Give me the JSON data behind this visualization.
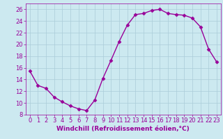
{
  "x": [
    0,
    1,
    2,
    3,
    4,
    5,
    6,
    7,
    8,
    9,
    10,
    11,
    12,
    13,
    14,
    15,
    16,
    17,
    18,
    19,
    20,
    21,
    22,
    23
  ],
  "y": [
    15.5,
    13.0,
    12.5,
    11.0,
    10.2,
    9.5,
    9.0,
    8.7,
    10.5,
    14.2,
    17.3,
    20.5,
    23.3,
    25.1,
    25.3,
    25.8,
    26.0,
    25.3,
    25.1,
    25.0,
    24.5,
    23.0,
    19.2,
    17.0
  ],
  "line_color": "#990099",
  "marker": "D",
  "marker_size": 2.5,
  "linewidth": 1.0,
  "bg_color": "#cce9f0",
  "grid_color": "#aaccd8",
  "xlabel": "Windchill (Refroidissement éolien,°C)",
  "xlabel_color": "#990099",
  "xlabel_fontsize": 6.5,
  "tick_color": "#990099",
  "tick_fontsize": 6.0,
  "ylim": [
    8,
    27
  ],
  "xlim": [
    -0.5,
    23.5
  ],
  "yticks": [
    8,
    10,
    12,
    14,
    16,
    18,
    20,
    22,
    24,
    26
  ],
  "xticks": [
    0,
    1,
    2,
    3,
    4,
    5,
    6,
    7,
    8,
    9,
    10,
    11,
    12,
    13,
    14,
    15,
    16,
    17,
    18,
    19,
    20,
    21,
    22,
    23
  ]
}
